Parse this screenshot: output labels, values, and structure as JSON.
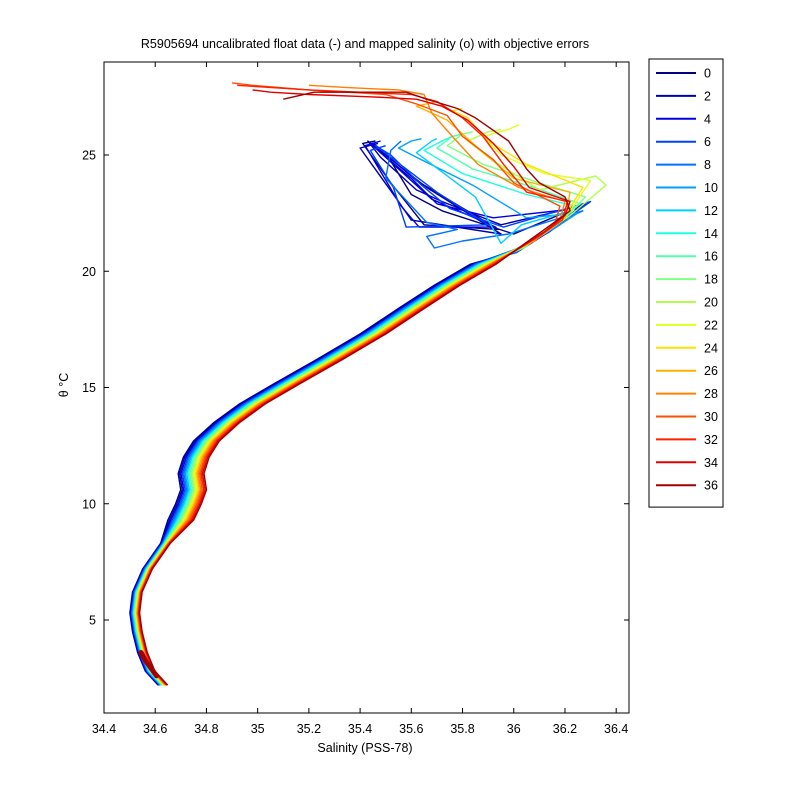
{
  "chart_data": {
    "type": "line",
    "title": "R5905694 uncalibrated float data (-) and mapped salinity (o) with objective errors",
    "xlabel": "Salinity (PSS-78)",
    "ylabel": "θ °C",
    "xlim": [
      34.4,
      36.45
    ],
    "ylim": [
      1.0,
      29.0
    ],
    "x_ticks": [
      34.4,
      34.6,
      34.8,
      35,
      35.2,
      35.4,
      35.6,
      35.8,
      36,
      36.2,
      36.4
    ],
    "x_tick_labels": [
      "34.4",
      "34.6",
      "34.8",
      "35",
      "35.2",
      "35.4",
      "35.6",
      "35.8",
      "36",
      "36.2",
      "36.4"
    ],
    "y_ticks": [
      5,
      10,
      15,
      20,
      25
    ],
    "y_tick_labels": [
      "5",
      "10",
      "15",
      "20",
      "25"
    ],
    "grid": false,
    "legend_position": "outside-right",
    "deep_profile": [
      [
        34.63,
        2.2
      ],
      [
        34.58,
        2.8
      ],
      [
        34.55,
        3.6
      ],
      [
        34.53,
        4.5
      ],
      [
        34.52,
        5.3
      ],
      [
        34.53,
        6.2
      ],
      [
        34.57,
        7.2
      ],
      [
        34.64,
        8.3
      ],
      [
        34.7,
        9.3
      ],
      [
        34.73,
        10.0
      ],
      [
        34.75,
        10.6
      ],
      [
        34.74,
        11.3
      ],
      [
        34.76,
        12.0
      ],
      [
        34.8,
        12.7
      ],
      [
        34.88,
        13.5
      ],
      [
        34.98,
        14.3
      ],
      [
        35.12,
        15.2
      ],
      [
        35.28,
        16.2
      ],
      [
        35.45,
        17.3
      ],
      [
        35.6,
        18.4
      ],
      [
        35.74,
        19.4
      ],
      [
        35.88,
        20.3
      ]
    ],
    "series": [
      {
        "name": "0",
        "color": "#000080",
        "values": [
          [
            36.02,
            20.9
          ],
          [
            36.15,
            21.8
          ],
          [
            36.28,
            22.9
          ],
          [
            36.0,
            21.6
          ],
          [
            35.72,
            22.6
          ],
          [
            35.6,
            23.3
          ],
          [
            35.5,
            25.1
          ],
          [
            35.45,
            25.5
          ],
          [
            35.62,
            23.9
          ],
          [
            35.94,
            21.8
          ],
          [
            35.65,
            22.0
          ],
          [
            35.52,
            23.8
          ],
          [
            35.41,
            25.5
          ],
          [
            35.46,
            25.6
          ]
        ]
      },
      {
        "name": "2",
        "color": "#0000b0",
        "values": [
          [
            36.01,
            20.8
          ],
          [
            36.18,
            22.0
          ],
          [
            36.26,
            22.8
          ],
          [
            35.95,
            22.0
          ],
          [
            35.72,
            23.0
          ],
          [
            35.62,
            23.5
          ],
          [
            35.48,
            24.9
          ],
          [
            35.43,
            25.6
          ],
          [
            35.66,
            23.6
          ],
          [
            35.95,
            21.6
          ],
          [
            35.6,
            22.2
          ],
          [
            35.55,
            23.0
          ],
          [
            35.4,
            25.3
          ],
          [
            35.47,
            25.5
          ]
        ]
      },
      {
        "name": "4",
        "color": "#0000e0",
        "values": [
          [
            36.0,
            20.9
          ],
          [
            36.14,
            21.7
          ],
          [
            36.25,
            22.7
          ],
          [
            35.92,
            22.3
          ],
          [
            35.7,
            22.9
          ],
          [
            35.6,
            24.0
          ],
          [
            35.47,
            25.2
          ],
          [
            35.44,
            25.5
          ],
          [
            35.68,
            23.1
          ],
          [
            35.93,
            21.9
          ],
          [
            35.63,
            21.9
          ],
          [
            35.56,
            22.8
          ],
          [
            35.42,
            25.4
          ],
          [
            35.48,
            25.6
          ]
        ]
      },
      {
        "name": "6",
        "color": "#0040ff",
        "values": [
          [
            36.02,
            21.0
          ],
          [
            36.16,
            21.9
          ],
          [
            36.3,
            23.0
          ],
          [
            35.96,
            21.9
          ],
          [
            35.75,
            22.7
          ],
          [
            35.64,
            23.7
          ],
          [
            35.52,
            25.0
          ],
          [
            35.46,
            25.4
          ],
          [
            35.7,
            23.4
          ],
          [
            35.9,
            22.0
          ],
          [
            35.58,
            21.9
          ],
          [
            35.53,
            23.6
          ],
          [
            35.44,
            25.2
          ],
          [
            35.5,
            25.4
          ]
        ]
      },
      {
        "name": "8",
        "color": "#0070ff",
        "values": [
          [
            36.01,
            20.8
          ],
          [
            36.17,
            22.1
          ],
          [
            36.27,
            22.6
          ],
          [
            35.98,
            21.6
          ],
          [
            35.8,
            21.3
          ],
          [
            35.69,
            21.0
          ],
          [
            35.66,
            21.5
          ],
          [
            35.78,
            21.8
          ],
          [
            35.66,
            22.1
          ],
          [
            35.5,
            24.0
          ],
          [
            35.52,
            25.2
          ],
          [
            35.56,
            25.6
          ]
        ]
      },
      {
        "name": "10",
        "color": "#00a0ff",
        "values": [
          [
            36.03,
            21.0
          ],
          [
            36.18,
            22.0
          ],
          [
            36.25,
            22.5
          ],
          [
            36.05,
            22.3
          ],
          [
            35.84,
            23.7
          ],
          [
            35.62,
            24.9
          ],
          [
            35.55,
            25.3
          ],
          [
            35.6,
            25.6
          ],
          [
            35.64,
            25.7
          ]
        ]
      },
      {
        "name": "12",
        "color": "#00d0ff",
        "values": [
          [
            36.02,
            21.0
          ],
          [
            36.17,
            22.1
          ],
          [
            36.22,
            22.6
          ],
          [
            36.03,
            22.0
          ],
          [
            35.95,
            21.2
          ],
          [
            35.85,
            23.2
          ],
          [
            35.62,
            25.1
          ],
          [
            35.68,
            25.6
          ],
          [
            35.7,
            25.7
          ]
        ]
      },
      {
        "name": "14",
        "color": "#20ffe0",
        "values": [
          [
            36.03,
            21.0
          ],
          [
            36.15,
            21.9
          ],
          [
            36.24,
            22.8
          ],
          [
            36.05,
            23.3
          ],
          [
            35.8,
            24.2
          ],
          [
            35.65,
            25.2
          ],
          [
            35.72,
            25.6
          ],
          [
            35.76,
            25.8
          ]
        ]
      },
      {
        "name": "16",
        "color": "#50ffb0",
        "values": [
          [
            36.04,
            21.0
          ],
          [
            36.18,
            22.2
          ],
          [
            36.26,
            22.9
          ],
          [
            36.08,
            23.6
          ],
          [
            35.84,
            24.4
          ],
          [
            35.7,
            25.3
          ],
          [
            35.76,
            25.8
          ],
          [
            35.8,
            25.9
          ]
        ]
      },
      {
        "name": "18",
        "color": "#80ff80",
        "values": [
          [
            36.04,
            21.1
          ],
          [
            36.2,
            22.3
          ],
          [
            36.28,
            23.2
          ],
          [
            36.1,
            23.8
          ],
          [
            35.88,
            24.6
          ],
          [
            35.74,
            25.4
          ],
          [
            35.8,
            25.9
          ],
          [
            35.84,
            26.0
          ]
        ]
      },
      {
        "name": "20",
        "color": "#b0ff50",
        "values": [
          [
            36.05,
            21.1
          ],
          [
            36.22,
            22.4
          ],
          [
            36.36,
            23.7
          ],
          [
            36.32,
            24.1
          ],
          [
            36.1,
            23.5
          ],
          [
            35.9,
            24.9
          ],
          [
            35.82,
            25.6
          ],
          [
            35.9,
            26.0
          ],
          [
            35.95,
            26.1
          ]
        ]
      },
      {
        "name": "22",
        "color": "#e0ff20",
        "values": [
          [
            36.06,
            21.2
          ],
          [
            36.22,
            22.6
          ],
          [
            36.3,
            23.9
          ],
          [
            36.12,
            24.2
          ],
          [
            35.95,
            25.0
          ],
          [
            35.88,
            25.8
          ],
          [
            35.98,
            26.1
          ],
          [
            36.02,
            26.3
          ]
        ]
      },
      {
        "name": "24",
        "color": "#ffe000",
        "values": [
          [
            36.07,
            21.3
          ],
          [
            36.2,
            22.4
          ],
          [
            36.27,
            23.6
          ],
          [
            36.05,
            24.6
          ],
          [
            35.9,
            25.6
          ],
          [
            35.82,
            26.6
          ],
          [
            35.76,
            26.9
          ],
          [
            35.8,
            27.0
          ]
        ]
      },
      {
        "name": "26",
        "color": "#ffb000",
        "values": [
          [
            36.08,
            21.3
          ],
          [
            36.2,
            22.3
          ],
          [
            36.22,
            23.4
          ],
          [
            36.0,
            24.0
          ],
          [
            35.85,
            25.4
          ],
          [
            35.74,
            26.5
          ],
          [
            35.66,
            26.9
          ],
          [
            35.62,
            27.1
          ],
          [
            35.7,
            27.3
          ]
        ]
      },
      {
        "name": "28",
        "color": "#ff8000",
        "values": [
          [
            36.09,
            21.4
          ],
          [
            36.18,
            22.2
          ],
          [
            36.2,
            23.0
          ],
          [
            36.02,
            23.6
          ],
          [
            35.86,
            24.6
          ],
          [
            35.76,
            25.8
          ],
          [
            35.68,
            26.8
          ],
          [
            35.65,
            27.6
          ],
          [
            35.55,
            27.8
          ],
          [
            35.35,
            27.9
          ],
          [
            35.2,
            28.0
          ]
        ]
      },
      {
        "name": "30",
        "color": "#ff5000",
        "values": [
          [
            36.1,
            21.5
          ],
          [
            36.16,
            22.0
          ],
          [
            36.18,
            22.8
          ],
          [
            36.0,
            23.8
          ],
          [
            35.92,
            24.8
          ],
          [
            35.8,
            25.8
          ],
          [
            35.74,
            26.7
          ],
          [
            35.62,
            27.2
          ],
          [
            35.5,
            27.6
          ],
          [
            35.2,
            27.8
          ],
          [
            34.98,
            28.0
          ],
          [
            34.9,
            28.1
          ]
        ]
      },
      {
        "name": "32",
        "color": "#ff2000",
        "values": [
          [
            36.11,
            21.6
          ],
          [
            36.19,
            22.2
          ],
          [
            36.21,
            23.0
          ],
          [
            36.05,
            23.4
          ],
          [
            35.96,
            24.6
          ],
          [
            35.88,
            25.8
          ],
          [
            35.8,
            26.6
          ],
          [
            35.7,
            27.3
          ],
          [
            35.6,
            27.6
          ],
          [
            35.4,
            27.7
          ],
          [
            35.2,
            27.8
          ],
          [
            34.92,
            28.0
          ]
        ]
      },
      {
        "name": "34",
        "color": "#e00000",
        "values": [
          [
            36.12,
            21.7
          ],
          [
            36.2,
            22.4
          ],
          [
            36.22,
            23.0
          ],
          [
            36.06,
            23.6
          ],
          [
            36.0,
            24.5
          ],
          [
            35.92,
            25.5
          ],
          [
            35.82,
            26.5
          ],
          [
            35.72,
            27.1
          ],
          [
            35.62,
            27.4
          ],
          [
            35.45,
            27.5
          ],
          [
            35.2,
            27.6
          ],
          [
            35.05,
            27.7
          ],
          [
            34.98,
            27.8
          ]
        ]
      },
      {
        "name": "36",
        "color": "#a00000",
        "values": [
          [
            36.12,
            21.8
          ],
          [
            36.22,
            22.6
          ],
          [
            36.2,
            23.2
          ],
          [
            36.1,
            23.8
          ],
          [
            36.05,
            24.4
          ],
          [
            35.98,
            25.6
          ],
          [
            35.85,
            26.6
          ],
          [
            35.78,
            27.0
          ],
          [
            35.66,
            27.4
          ],
          [
            35.58,
            27.7
          ],
          [
            35.4,
            27.7
          ],
          [
            35.22,
            27.7
          ],
          [
            35.1,
            27.4
          ]
        ]
      }
    ]
  }
}
